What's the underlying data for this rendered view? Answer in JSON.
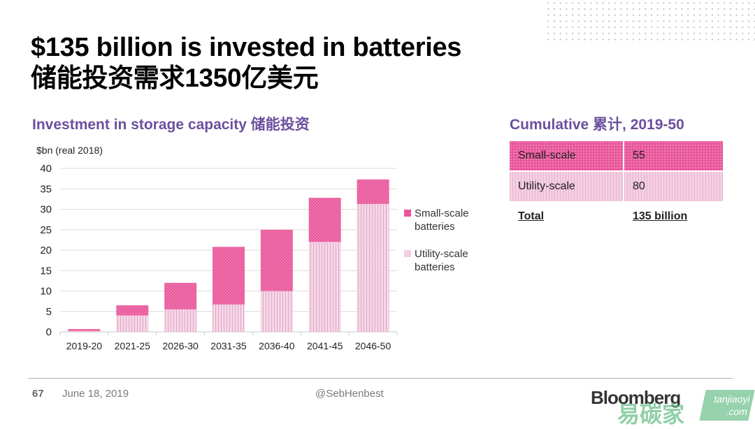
{
  "slide": {
    "title_en": "$135 billion is invested in batteries",
    "title_cn": "储能投资需求1350亿美元",
    "left_heading": "Investment in storage capacity 储能投资",
    "right_heading": "Cumulative 累计, 2019-50",
    "page_number": "67",
    "date": "June 18, 2019",
    "handle": "@SebHenbest"
  },
  "colors": {
    "small_scale": "#e8559a",
    "utility_scale": "#f4d0e3",
    "heading": "#6b4f9e"
  },
  "chart_data": {
    "type": "bar",
    "stacked": true,
    "title": "Investment in storage capacity 储能投资",
    "ylabel": "$bn (real 2018)",
    "xlabel": "",
    "ylim": [
      0,
      40
    ],
    "yticks": [
      0,
      5,
      10,
      15,
      20,
      25,
      30,
      35,
      40
    ],
    "grid": true,
    "legend_position": "right",
    "categories": [
      "2019-20",
      "2021-25",
      "2026-30",
      "2031-35",
      "2036-40",
      "2041-45",
      "2046-50"
    ],
    "series": [
      {
        "name": "Utility-scale batteries",
        "values": [
          0.2,
          4.0,
          5.5,
          6.7,
          10.0,
          22.0,
          31.3
        ]
      },
      {
        "name": "Small-scale batteries",
        "values": [
          0.5,
          2.5,
          6.5,
          14.1,
          15.0,
          10.8,
          6.0
        ]
      }
    ]
  },
  "table": {
    "rows": [
      {
        "label": "Small-scale",
        "value": "55"
      },
      {
        "label": "Utility-scale",
        "value": "80"
      }
    ],
    "total_label": "Total",
    "total_value": "135 billion"
  },
  "watermark": {
    "logo_text": "Bloomberg",
    "cn_text": "易碳家",
    "site_text": "tanjiaoyi .com"
  }
}
